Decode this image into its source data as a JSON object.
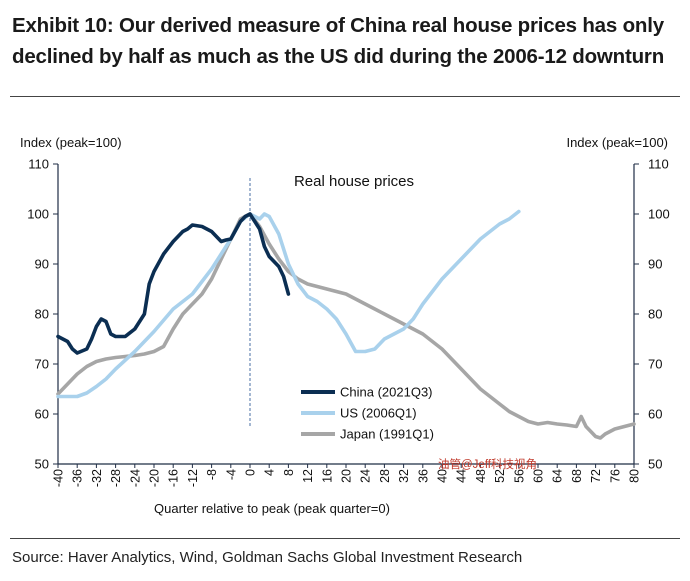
{
  "title_line1": "Exhibit 10: Our derived measure of China real house prices has only",
  "title_line2": "declined by half as much as the US did during the 2006-12 downturn",
  "source": "Source: Haver Analytics, Wind, Goldman Sachs Global Investment Research",
  "watermark": "油管@Jeff科技视角",
  "colors": {
    "china": "#0b2e52",
    "us": "#a9d1ec",
    "japan": "#a6a6a6",
    "axis": "#1f2d45",
    "peak_line": "#4a6fa5"
  },
  "chart_data": {
    "type": "line",
    "title": "Real house prices",
    "ylabel_left": "Index (peak=100)",
    "ylabel_right": "Index (peak=100)",
    "xlabel": "Quarter relative to peak (peak quarter=0)",
    "xlim": [
      -40,
      80
    ],
    "ylim": [
      50,
      110
    ],
    "yticks": [
      50,
      60,
      70,
      80,
      90,
      100,
      110
    ],
    "ytick_labels": [
      "50",
      "60",
      "70",
      "80",
      "90",
      "100",
      "110"
    ],
    "xticks": [
      -40,
      -36,
      -32,
      -28,
      -24,
      -20,
      -16,
      -12,
      -8,
      -4,
      0,
      4,
      8,
      12,
      16,
      20,
      24,
      28,
      32,
      36,
      40,
      44,
      48,
      52,
      56,
      60,
      64,
      68,
      72,
      76,
      80
    ],
    "xtick_labels": [
      "-40",
      "-36",
      "-32",
      "-28",
      "-24",
      "-20",
      "-16",
      "-12",
      "-8",
      "-4",
      "0",
      "4",
      "8",
      "12",
      "16",
      "20",
      "24",
      "28",
      "32",
      "36",
      "40",
      "44",
      "48",
      "52",
      "56",
      "60",
      "64",
      "68",
      "72",
      "76",
      "80"
    ],
    "legend_position": "bottom-center",
    "series": [
      {
        "name": "Japan (1991Q1)",
        "color": "#a6a6a6",
        "x": [
          -40,
          -38,
          -36,
          -34,
          -32,
          -30,
          -28,
          -26,
          -24,
          -22,
          -20,
          -18,
          -16,
          -14,
          -12,
          -10,
          -8,
          -6,
          -4,
          -2,
          0,
          2,
          4,
          6,
          8,
          10,
          12,
          14,
          16,
          18,
          20,
          22,
          24,
          26,
          28,
          30,
          32,
          34,
          36,
          38,
          40,
          42,
          44,
          46,
          48,
          50,
          52,
          54,
          56,
          58,
          60,
          62,
          64,
          66,
          68,
          69,
          70,
          72,
          73,
          74,
          76,
          78,
          80
        ],
        "values": [
          64,
          66,
          68,
          69.5,
          70.5,
          71,
          71.3,
          71.5,
          71.7,
          72,
          72.5,
          73.5,
          77,
          80,
          82,
          84,
          87,
          91,
          95,
          99,
          100,
          97.5,
          94,
          91,
          88.5,
          87,
          86,
          85.5,
          85,
          84.5,
          84,
          83,
          82,
          81,
          80,
          79,
          78,
          77,
          76,
          74.5,
          73,
          71,
          69,
          67,
          65,
          63.5,
          62,
          60.5,
          59.5,
          58.5,
          58,
          58.3,
          58,
          57.8,
          57.5,
          59.5,
          57.5,
          55.5,
          55.2,
          56,
          57,
          57.5,
          58
        ]
      },
      {
        "name": "US (2006Q1)",
        "color": "#a9d1ec",
        "x": [
          -40,
          -36,
          -34,
          -32,
          -30,
          -28,
          -24,
          -20,
          -16,
          -12,
          -8,
          -4,
          -2,
          0,
          2,
          3,
          4,
          6,
          8,
          10,
          12,
          14,
          16,
          18,
          20,
          22,
          24,
          26,
          28,
          30,
          32,
          34,
          36,
          38,
          40,
          42,
          44,
          46,
          48,
          50,
          52,
          54,
          56
        ],
        "values": [
          63.5,
          63.5,
          64.2,
          65.5,
          67,
          69,
          72.5,
          76.5,
          81,
          84,
          89,
          95,
          98.5,
          100,
          99,
          100,
          99.5,
          96,
          90,
          86,
          83.5,
          82.5,
          81,
          79,
          76,
          72.5,
          72.5,
          73,
          75,
          76,
          77,
          79,
          82,
          84.5,
          87,
          89,
          91,
          93,
          95,
          96.5,
          98,
          99,
          100.5
        ]
      },
      {
        "name": "China (2021Q3)",
        "color": "#0b2e52",
        "x": [
          -40,
          -38,
          -37,
          -36,
          -34,
          -33,
          -32,
          -31,
          -30,
          -29,
          -28,
          -26,
          -24,
          -22,
          -21,
          -20,
          -18,
          -16,
          -14,
          -13,
          -12,
          -10,
          -8,
          -6,
          -5,
          -4,
          -2,
          -1,
          0,
          1,
          2,
          3,
          4,
          5,
          6,
          7,
          8
        ],
        "values": [
          75.5,
          74.5,
          73,
          72.2,
          73,
          75,
          77.5,
          79,
          78.5,
          76,
          75.5,
          75.5,
          77,
          80,
          86,
          88.5,
          92,
          94.5,
          96.5,
          97,
          97.8,
          97.5,
          96.5,
          94.5,
          94.8,
          95,
          98.5,
          99.5,
          100,
          98.5,
          97,
          93.5,
          91.5,
          90.5,
          89.5,
          87.5,
          84
        ]
      }
    ]
  }
}
